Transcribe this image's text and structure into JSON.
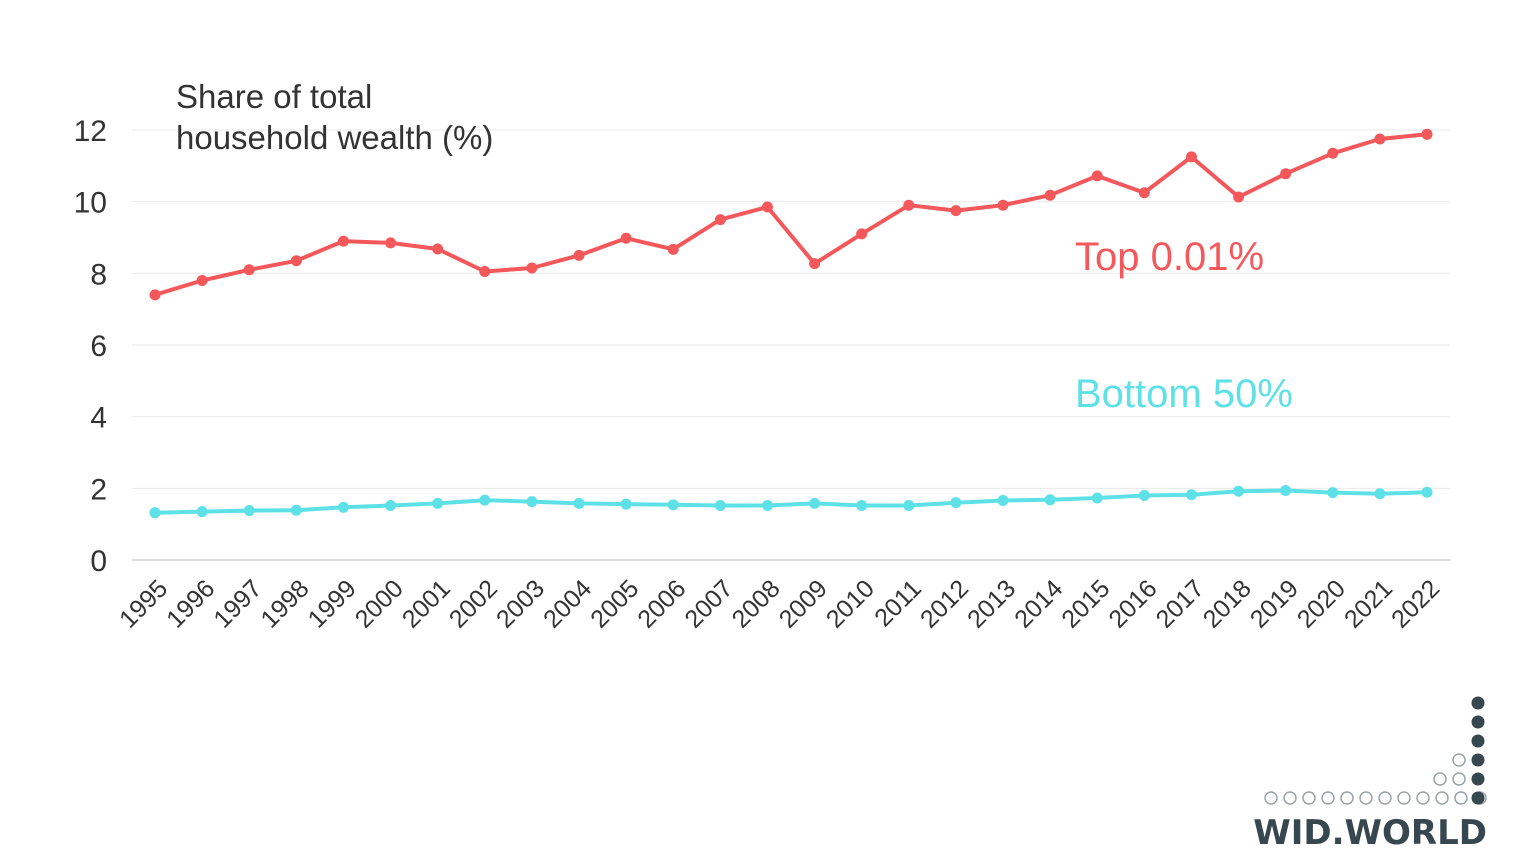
{
  "chart_data": {
    "type": "line",
    "ylabel_lines": [
      "Share of total",
      "household wealth (%)"
    ],
    "ylim": [
      0,
      12
    ],
    "yticks": [
      0,
      2,
      4,
      6,
      8,
      10,
      12
    ],
    "grid": true,
    "x": [
      "1995",
      "1996",
      "1997",
      "1998",
      "1999",
      "2000",
      "2001",
      "2002",
      "2003",
      "2004",
      "2005",
      "2006",
      "2007",
      "2008",
      "2009",
      "2010",
      "2011",
      "2012",
      "2013",
      "2014",
      "2015",
      "2016",
      "2017",
      "2018",
      "2019",
      "2020",
      "2021",
      "2022"
    ],
    "series": [
      {
        "name": "Top 0.01%",
        "color": "#f4585b",
        "values": [
          7.4,
          7.8,
          8.1,
          8.35,
          8.9,
          8.85,
          8.68,
          8.05,
          8.15,
          8.5,
          8.98,
          8.67,
          9.5,
          9.85,
          8.27,
          9.1,
          9.9,
          9.75,
          9.9,
          10.18,
          10.72,
          10.25,
          11.25,
          10.13,
          10.78,
          11.35,
          11.75,
          11.88
        ]
      },
      {
        "name": "Bottom 50%",
        "color": "#5ee1e6",
        "values": [
          1.32,
          1.35,
          1.38,
          1.39,
          1.47,
          1.52,
          1.58,
          1.67,
          1.63,
          1.58,
          1.56,
          1.54,
          1.52,
          1.52,
          1.58,
          1.52,
          1.52,
          1.6,
          1.66,
          1.68,
          1.73,
          1.8,
          1.82,
          1.92,
          1.94,
          1.88,
          1.85,
          1.89
        ]
      }
    ]
  },
  "branding": {
    "logo_text": "WID.WORLD",
    "logo_color": "#37474f"
  }
}
